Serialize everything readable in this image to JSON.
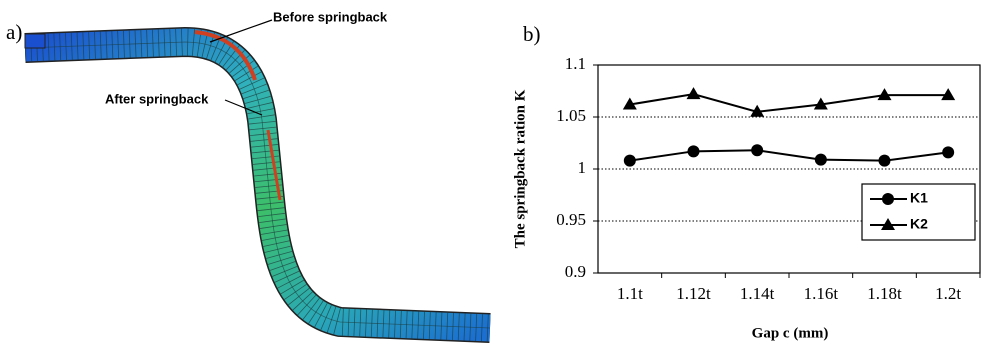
{
  "panel_a": {
    "label": "a)",
    "annotations": [
      "Before springback",
      "After springback"
    ]
  },
  "panel_b": {
    "label": "b)"
  },
  "chart_data": {
    "type": "line",
    "x_label": "Gap c (mm)",
    "y_label": "The springback ration K",
    "categories": [
      "1.1t",
      "1.12t",
      "1.14t",
      "1.16t",
      "1.18t",
      "1.2t"
    ],
    "series": [
      {
        "name": "K1",
        "color": "#000000",
        "marker": "circle",
        "values": [
          1.008,
          1.017,
          1.018,
          1.009,
          1.008,
          1.016
        ]
      },
      {
        "name": "K2",
        "color": "#000000",
        "marker": "triangle",
        "values": [
          1.062,
          1.072,
          1.055,
          1.062,
          1.071,
          1.071
        ]
      }
    ],
    "ylim": [
      0.9,
      1.1
    ],
    "yticks": [
      0.9,
      0.95,
      1,
      1.05,
      1.1
    ],
    "grid": true,
    "legend": "lower right"
  }
}
